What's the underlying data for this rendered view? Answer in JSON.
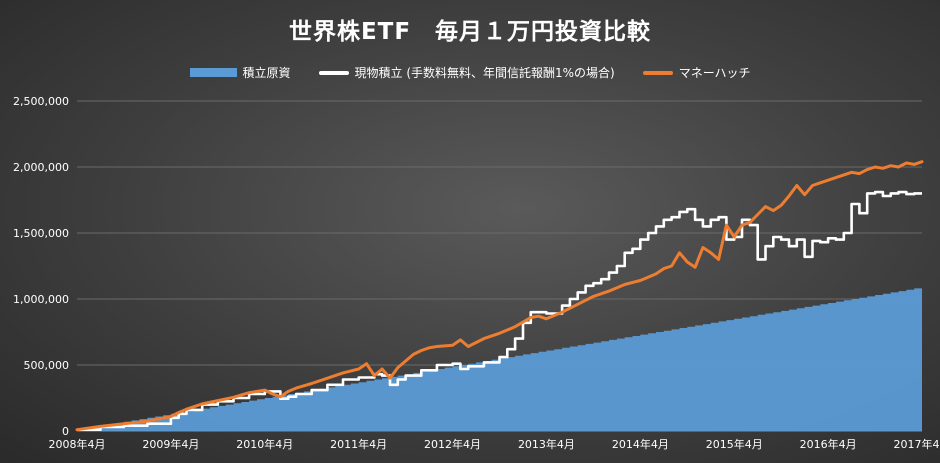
{
  "chart_data": {
    "type": "area+line",
    "title": "世界株ETF　毎月１万円投資比較",
    "xlabel": "",
    "ylabel": "",
    "ylim": [
      0,
      2500000
    ],
    "yticks": [
      0,
      500000,
      1000000,
      1500000,
      2000000,
      2500000
    ],
    "ytick_labels": [
      "0",
      "500,000",
      "1,000,000",
      "1,500,000",
      "2,000,000",
      "2,500,000"
    ],
    "xticks": [
      0,
      12,
      24,
      36,
      48,
      60,
      72,
      84,
      96,
      108
    ],
    "xtick_labels": [
      "2008年4月",
      "2009年4月",
      "2010年4月",
      "2011年4月",
      "2012年4月",
      "2013年4月",
      "2014年4月",
      "2015年4月",
      "2016年4月",
      "2017年4月"
    ],
    "x_start": "2008年4月",
    "x_end": "2017年4月",
    "grid": true,
    "legend_position": "top",
    "series": [
      {
        "name": "積立原資",
        "kind": "area",
        "color": "#5b9bd5",
        "x": [
          0,
          108
        ],
        "values": [
          10000,
          1090000
        ]
      },
      {
        "name": "現物積立 (手数料無料、年間信託報酬1%の場合)",
        "kind": "line",
        "color": "#ffffff",
        "x": [
          0,
          3,
          6,
          9,
          12,
          13,
          14,
          16,
          18,
          20,
          22,
          24,
          26,
          27,
          28,
          30,
          32,
          34,
          36,
          38,
          39,
          40,
          41,
          42,
          44,
          46,
          48,
          49,
          50,
          52,
          54,
          55,
          56,
          57,
          58,
          60,
          62,
          63,
          64,
          65,
          66,
          67,
          68,
          69,
          70,
          71,
          72,
          73,
          74,
          75,
          76,
          77,
          78,
          79,
          80,
          81,
          82,
          83,
          84,
          85,
          86,
          87,
          88,
          89,
          90,
          91,
          92,
          93,
          94,
          95,
          96,
          97,
          98,
          99,
          100,
          101,
          102,
          103,
          104,
          105,
          106,
          107,
          108
        ],
        "values": [
          10000,
          30000,
          40000,
          55000,
          100000,
          130000,
          160000,
          200000,
          225000,
          250000,
          280000,
          300000,
          245000,
          260000,
          280000,
          310000,
          350000,
          390000,
          405000,
          430000,
          420000,
          350000,
          390000,
          420000,
          460000,
          500000,
          510000,
          470000,
          490000,
          520000,
          560000,
          620000,
          700000,
          820000,
          900000,
          890000,
          950000,
          1000000,
          1050000,
          1100000,
          1120000,
          1150000,
          1200000,
          1250000,
          1350000,
          1380000,
          1450000,
          1500000,
          1550000,
          1600000,
          1620000,
          1660000,
          1680000,
          1600000,
          1550000,
          1600000,
          1620000,
          1450000,
          1470000,
          1600000,
          1560000,
          1300000,
          1400000,
          1470000,
          1450000,
          1400000,
          1450000,
          1320000,
          1440000,
          1430000,
          1460000,
          1450000,
          1500000,
          1720000,
          1650000,
          1800000,
          1810000,
          1780000,
          1800000,
          1810000,
          1795000,
          1800000,
          1800000
        ]
      },
      {
        "name": "マネーハッチ",
        "kind": "line",
        "color": "#ed7d31",
        "x": [
          0,
          3,
          6,
          9,
          12,
          13,
          14,
          16,
          18,
          20,
          22,
          24,
          25,
          26,
          27,
          28,
          30,
          32,
          34,
          36,
          37,
          38,
          39,
          40,
          41,
          42,
          43,
          44,
          45,
          46,
          48,
          49,
          50,
          52,
          54,
          56,
          58,
          59,
          60,
          62,
          64,
          66,
          68,
          70,
          72,
          74,
          75,
          76,
          77,
          78,
          79,
          80,
          81,
          82,
          83,
          84,
          85,
          86,
          87,
          88,
          89,
          90,
          91,
          92,
          93,
          94,
          95,
          96,
          97,
          98,
          99,
          100,
          101,
          102,
          103,
          104,
          105,
          106,
          107,
          108
        ],
        "values": [
          10000,
          35000,
          55000,
          75000,
          110000,
          140000,
          165000,
          205000,
          230000,
          255000,
          290000,
          310000,
          280000,
          260000,
          300000,
          325000,
          360000,
          400000,
          440000,
          470000,
          510000,
          420000,
          470000,
          400000,
          480000,
          530000,
          580000,
          610000,
          630000,
          640000,
          650000,
          690000,
          640000,
          700000,
          740000,
          790000,
          860000,
          870000,
          850000,
          900000,
          960000,
          1020000,
          1060000,
          1110000,
          1140000,
          1190000,
          1230000,
          1250000,
          1350000,
          1280000,
          1240000,
          1390000,
          1350000,
          1300000,
          1560000,
          1470000,
          1560000,
          1580000,
          1640000,
          1700000,
          1670000,
          1710000,
          1780000,
          1860000,
          1790000,
          1860000,
          1880000,
          1900000,
          1920000,
          1940000,
          1960000,
          1950000,
          1980000,
          2000000,
          1990000,
          2010000,
          2000000,
          2030000,
          2020000,
          2040000
        ]
      }
    ]
  }
}
